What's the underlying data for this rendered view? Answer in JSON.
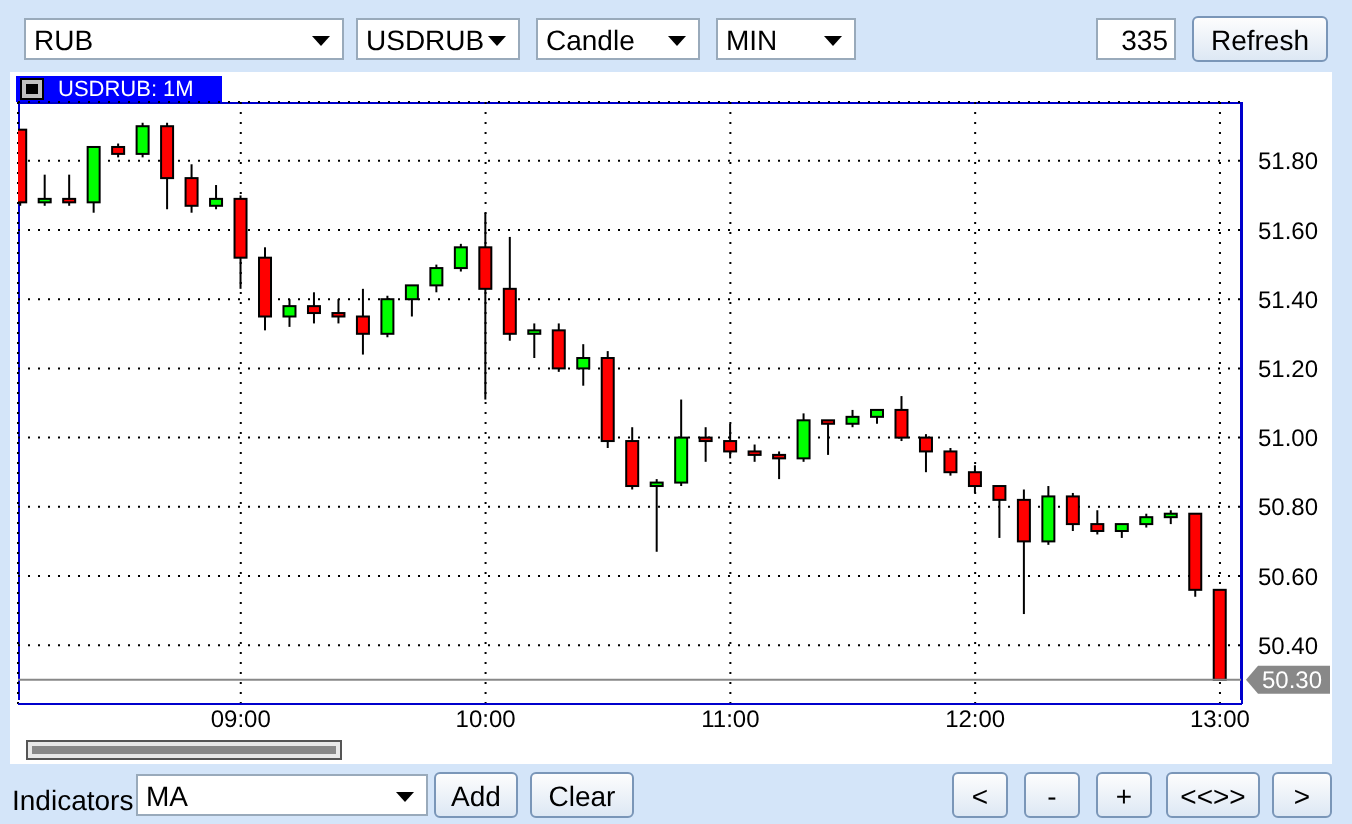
{
  "chart_data": {
    "type": "candlestick",
    "title": "USDRUB: 1M",
    "x": [
      8.1,
      8.2,
      8.3,
      8.4,
      8.5,
      8.6,
      8.7,
      8.8,
      8.9,
      9.0,
      9.1,
      9.2,
      9.3,
      9.4,
      9.5,
      9.6,
      9.7,
      9.8,
      9.9,
      10.0,
      10.1,
      10.2,
      10.3,
      10.4,
      10.5,
      10.6,
      10.7,
      10.8,
      10.9,
      11.0,
      11.1,
      11.2,
      11.3,
      11.4,
      11.5,
      11.6,
      11.7,
      11.8,
      11.9,
      12.0,
      12.1,
      12.2,
      12.3,
      12.4,
      12.5,
      12.6,
      12.7,
      12.8,
      12.9,
      13.0
    ],
    "ohlc": [
      [
        51.89,
        51.89,
        51.67,
        51.68
      ],
      [
        51.68,
        51.76,
        51.67,
        51.69
      ],
      [
        51.69,
        51.76,
        51.67,
        51.68
      ],
      [
        51.68,
        51.84,
        51.65,
        51.84
      ],
      [
        51.84,
        51.85,
        51.81,
        51.82
      ],
      [
        51.82,
        51.91,
        51.81,
        51.9
      ],
      [
        51.9,
        51.91,
        51.66,
        51.75
      ],
      [
        51.75,
        51.79,
        51.65,
        51.67
      ],
      [
        51.67,
        51.73,
        51.66,
        51.69
      ],
      [
        51.69,
        51.7,
        51.43,
        51.52
      ],
      [
        51.52,
        51.55,
        51.31,
        51.35
      ],
      [
        51.35,
        51.4,
        51.32,
        51.38
      ],
      [
        51.38,
        51.42,
        51.33,
        51.36
      ],
      [
        51.36,
        51.4,
        51.33,
        51.35
      ],
      [
        51.35,
        51.43,
        51.24,
        51.3
      ],
      [
        51.3,
        51.41,
        51.29,
        51.4
      ],
      [
        51.4,
        51.44,
        51.35,
        51.44
      ],
      [
        51.44,
        51.5,
        51.42,
        51.49
      ],
      [
        51.49,
        51.56,
        51.48,
        51.55
      ],
      [
        51.55,
        51.65,
        51.11,
        51.43
      ],
      [
        51.43,
        51.58,
        51.28,
        51.3
      ],
      [
        51.3,
        51.33,
        51.23,
        51.31
      ],
      [
        51.31,
        51.33,
        51.19,
        51.2
      ],
      [
        51.2,
        51.27,
        51.15,
        51.23
      ],
      [
        51.23,
        51.25,
        50.97,
        50.99
      ],
      [
        50.99,
        51.03,
        50.85,
        50.86
      ],
      [
        50.86,
        50.88,
        50.67,
        50.87
      ],
      [
        50.87,
        51.11,
        50.86,
        51.0
      ],
      [
        51.0,
        51.03,
        50.93,
        50.99
      ],
      [
        50.99,
        51.04,
        50.94,
        50.96
      ],
      [
        50.96,
        50.98,
        50.93,
        50.95
      ],
      [
        50.95,
        50.96,
        50.88,
        50.94
      ],
      [
        50.94,
        51.07,
        50.93,
        51.05
      ],
      [
        51.05,
        51.05,
        50.95,
        51.04
      ],
      [
        51.04,
        51.08,
        51.03,
        51.06
      ],
      [
        51.06,
        51.08,
        51.04,
        51.08
      ],
      [
        51.08,
        51.12,
        50.99,
        51.0
      ],
      [
        51.0,
        51.01,
        50.9,
        50.96
      ],
      [
        50.96,
        50.97,
        50.89,
        50.9
      ],
      [
        50.9,
        50.92,
        50.84,
        50.86
      ],
      [
        50.86,
        50.86,
        50.71,
        50.82
      ],
      [
        50.82,
        50.85,
        50.49,
        50.7
      ],
      [
        50.7,
        50.86,
        50.69,
        50.83
      ],
      [
        50.83,
        50.84,
        50.73,
        50.75
      ],
      [
        50.75,
        50.79,
        50.72,
        50.73
      ],
      [
        50.73,
        50.75,
        50.71,
        50.75
      ],
      [
        50.75,
        50.78,
        50.74,
        50.77
      ],
      [
        50.77,
        50.79,
        50.75,
        50.78
      ],
      [
        50.78,
        50.78,
        50.54,
        50.56
      ],
      [
        50.56,
        50.56,
        50.3,
        50.3
      ]
    ],
    "colors": [
      "#ff0000",
      "#00ff00",
      "#ff0000",
      "#00ff00",
      "#ff0000",
      "#00ff00",
      "#ff0000",
      "#ff0000",
      "#00ff00",
      "#ff0000",
      "#ff0000",
      "#00ff00",
      "#ff0000",
      "#ff0000",
      "#ff0000",
      "#00ff00",
      "#00ff00",
      "#00ff00",
      "#00ff00",
      "#ff0000",
      "#ff0000",
      "#00ff00",
      "#ff0000",
      "#00ff00",
      "#ff0000",
      "#ff0000",
      "#00ff00",
      "#00ff00",
      "#ff0000",
      "#ff0000",
      "#ff0000",
      "#ff0000",
      "#00ff00",
      "#ff0000",
      "#00ff00",
      "#00ff00",
      "#ff0000",
      "#ff0000",
      "#ff0000",
      "#ff0000",
      "#ff0000",
      "#ff0000",
      "#00ff00",
      "#ff0000",
      "#ff0000",
      "#00ff00",
      "#00ff00",
      "#00ff00",
      "#ff0000",
      "#ff0000"
    ],
    "xlim": [
      8.09,
      13.09
    ],
    "xticks": [
      {
        "value": 9,
        "label": "09:00"
      },
      {
        "value": 10,
        "label": "10:00"
      },
      {
        "value": 11,
        "label": "11:00"
      },
      {
        "value": 12,
        "label": "12:00"
      },
      {
        "value": 13,
        "label": "13:00"
      }
    ],
    "ylim": [
      50.23,
      51.97
    ],
    "yticks": [
      {
        "value": 50.4,
        "label": "50.40"
      },
      {
        "value": 50.6,
        "label": "50.60"
      },
      {
        "value": 50.8,
        "label": "50.80"
      },
      {
        "value": 51.0,
        "label": "51.00"
      },
      {
        "value": 51.2,
        "label": "51.20"
      },
      {
        "value": 51.4,
        "label": "51.40"
      },
      {
        "value": 51.6,
        "label": "51.60"
      },
      {
        "value": 51.8,
        "label": "51.80"
      }
    ],
    "grid": true,
    "legend": false,
    "ref_lines": [
      {
        "axis": "y",
        "value": 50.3,
        "label": "50.30",
        "color": "#888888"
      }
    ],
    "annotations": [
      "RUB",
      "USDRUB",
      "Candle",
      "MIN",
      "335",
      "Refresh",
      "Indicators",
      "MA",
      "Add",
      "Clear",
      "<",
      "-",
      "+",
      "<<>>",
      ">"
    ]
  }
}
